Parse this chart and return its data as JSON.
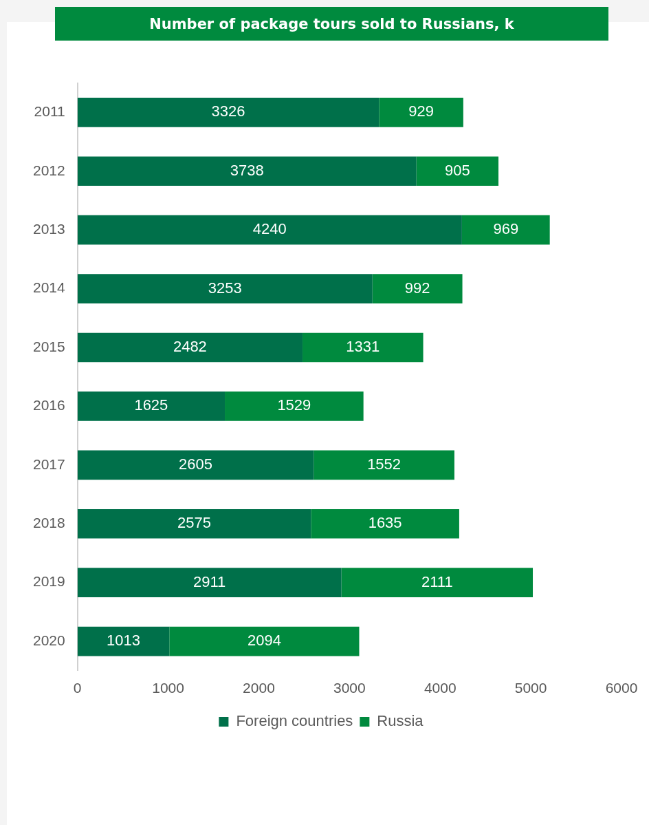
{
  "chart_data": {
    "type": "bar",
    "orientation": "horizontal",
    "stacked": true,
    "title": "Number of package tours sold to Russians, k",
    "categories": [
      "2011",
      "2012",
      "2013",
      "2014",
      "2015",
      "2016",
      "2017",
      "2018",
      "2019",
      "2020"
    ],
    "series": [
      {
        "name": "Foreign countries",
        "color": "#00704a",
        "values": [
          3326,
          3738,
          4240,
          3253,
          2482,
          1625,
          2605,
          2575,
          2911,
          1013
        ]
      },
      {
        "name": "Russia",
        "color": "#008a3e",
        "values": [
          929,
          905,
          969,
          992,
          1331,
          1529,
          1552,
          1635,
          2111,
          2094
        ]
      }
    ],
    "xlim": [
      0,
      6000
    ],
    "xticks": [
      0,
      1000,
      2000,
      3000,
      4000,
      5000,
      6000
    ],
    "grid": false,
    "legend": "bottom",
    "data_labels": true
  }
}
